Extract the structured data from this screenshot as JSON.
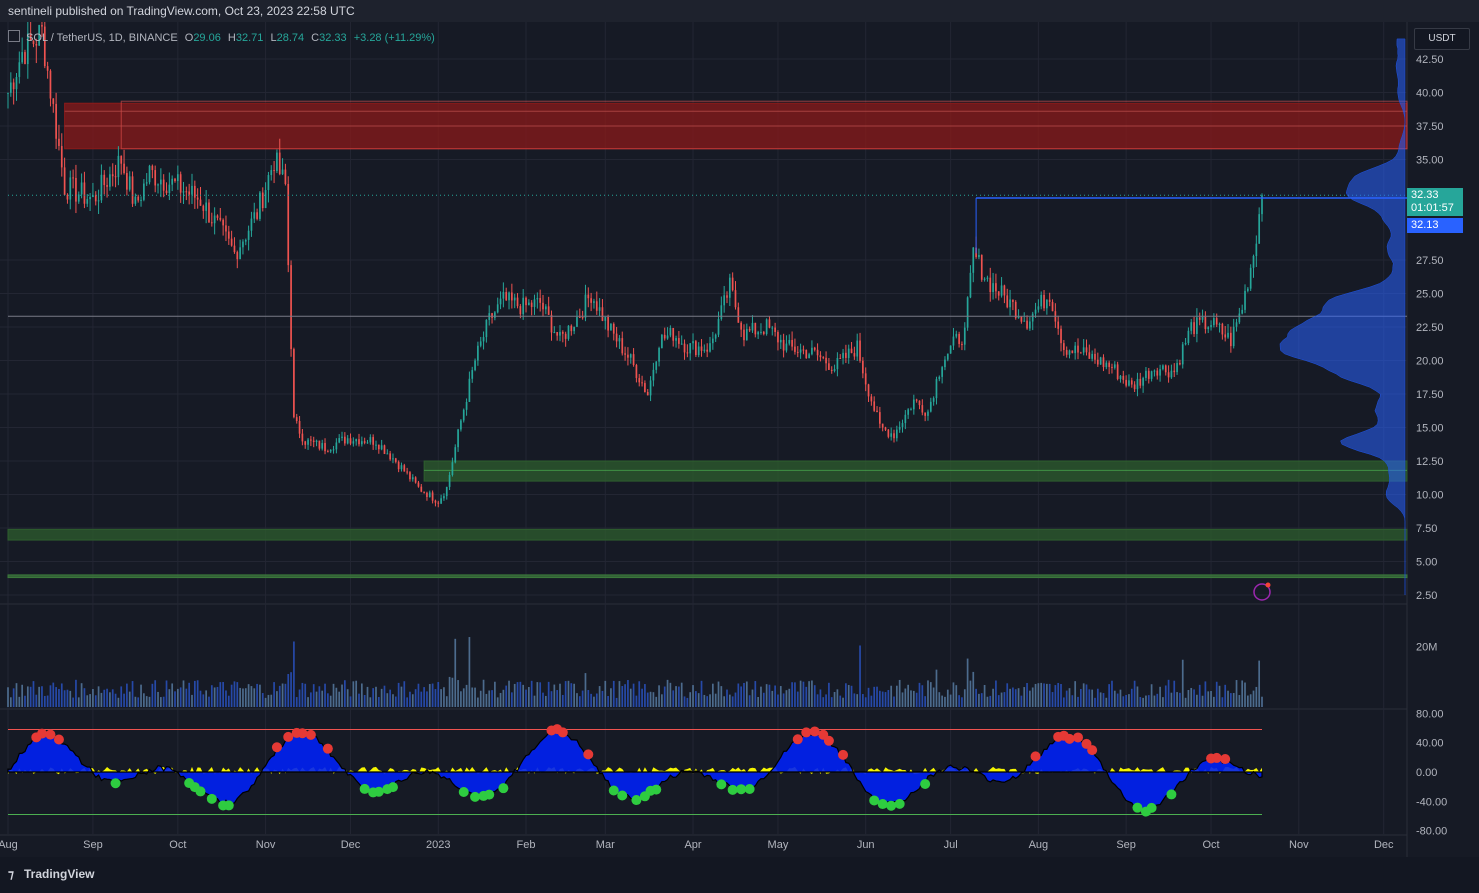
{
  "header": {
    "publish_line": "sentineli published on TradingView.com, Oct 23, 2023 22:58 UTC"
  },
  "legend": {
    "symbol": "SOL / TetherUS, 1D, BINANCE",
    "open_label": "O",
    "open": "29.06",
    "high_label": "H",
    "high": "32.71",
    "low_label": "L",
    "low": "28.74",
    "close_label": "C",
    "close": "32.33",
    "change": "+3.28 (+11.29%)"
  },
  "price_scale": {
    "currency": "USDT",
    "last_price": "32.33",
    "countdown": "01:01:57",
    "line_price": "32.13",
    "colors": {
      "last": "#26a69a",
      "line": "#2962ff"
    }
  },
  "footer": {
    "brand": "TradingView"
  },
  "chart_data": {
    "type": "candlestick",
    "symbol": "SOL / TetherUS",
    "interval": "1D",
    "exchange": "BINANCE",
    "x_labels": [
      "Aug",
      "Sep",
      "Oct",
      "Nov",
      "Dec",
      "2023",
      "Feb",
      "Mar",
      "Apr",
      "May",
      "Jun",
      "Jul",
      "Aug",
      "Sep",
      "Oct",
      "Nov",
      "Dec"
    ],
    "x_label_index": [
      0,
      30,
      60,
      91,
      121,
      152,
      183,
      211,
      242,
      272,
      303,
      333,
      364,
      395,
      425,
      456,
      486
    ],
    "price_ticks": [
      "42.50",
      "40.00",
      "37.50",
      "35.00",
      "27.50",
      "25.00",
      "22.50",
      "20.00",
      "17.50",
      "15.00",
      "12.50",
      "10.00",
      "7.50",
      "5.00",
      "2.50"
    ],
    "ylim": [
      1.5,
      44.5
    ],
    "anchors": [
      [
        0,
        40
      ],
      [
        5,
        43
      ],
      [
        12,
        44.5
      ],
      [
        20,
        33
      ],
      [
        30,
        32
      ],
      [
        40,
        35
      ],
      [
        45,
        31.5
      ],
      [
        50,
        34
      ],
      [
        60,
        33
      ],
      [
        68,
        32
      ],
      [
        80,
        28
      ],
      [
        88,
        31
      ],
      [
        94,
        35
      ],
      [
        98,
        33
      ],
      [
        101,
        15.5
      ],
      [
        105,
        14
      ],
      [
        112,
        13.5
      ],
      [
        120,
        14.2
      ],
      [
        130,
        14
      ],
      [
        137,
        12.5
      ],
      [
        145,
        10.5
      ],
      [
        152,
        9.5
      ],
      [
        155,
        10.5
      ],
      [
        160,
        15.5
      ],
      [
        165,
        20
      ],
      [
        170,
        23
      ],
      [
        175,
        24.5
      ],
      [
        182,
        24
      ],
      [
        188,
        24.3
      ],
      [
        195,
        21.5
      ],
      [
        202,
        23.5
      ],
      [
        206,
        25
      ],
      [
        212,
        22.5
      ],
      [
        220,
        20
      ],
      [
        226,
        17.5
      ],
      [
        230,
        21.5
      ],
      [
        235,
        22
      ],
      [
        240,
        21
      ],
      [
        248,
        21
      ],
      [
        255,
        25.5
      ],
      [
        260,
        22
      ],
      [
        268,
        22.5
      ],
      [
        275,
        21
      ],
      [
        285,
        20.5
      ],
      [
        292,
        19.5
      ],
      [
        300,
        21
      ],
      [
        303,
        18.5
      ],
      [
        308,
        15
      ],
      [
        313,
        14.5
      ],
      [
        320,
        17
      ],
      [
        325,
        16.2
      ],
      [
        330,
        20
      ],
      [
        335,
        21.5
      ],
      [
        338,
        22
      ],
      [
        341,
        28
      ],
      [
        346,
        26
      ],
      [
        353,
        24.5
      ],
      [
        360,
        23
      ],
      [
        368,
        25
      ],
      [
        373,
        21
      ],
      [
        380,
        20.5
      ],
      [
        390,
        19.5
      ],
      [
        397,
        18
      ],
      [
        405,
        19.5
      ],
      [
        412,
        19.2
      ],
      [
        418,
        22.5
      ],
      [
        425,
        22.8
      ],
      [
        432,
        21.5
      ],
      [
        436,
        24
      ],
      [
        440,
        28
      ],
      [
        443,
        32.33
      ]
    ],
    "candles_daily_total": 444,
    "last_close": 32.33,
    "zones": [
      {
        "name": "resistance-zone-upper",
        "low": 35.8,
        "high": 39.2,
        "color": "#8b1a1a"
      },
      {
        "name": "support-zone-mid",
        "low": 11.0,
        "high": 12.5,
        "color": "#2e5e2e"
      },
      {
        "name": "support-zone-low",
        "low": 6.6,
        "high": 7.4,
        "color": "#2e5e2e"
      },
      {
        "name": "support-line-bottom",
        "low": 3.8,
        "high": 4.0,
        "color": "#3c7a3c"
      }
    ],
    "lines": [
      {
        "name": "resistance-line",
        "price": 32.13,
        "from_index": 342,
        "color": "#2962ff"
      },
      {
        "name": "poc-line",
        "price": 23.3,
        "color": "#787b86"
      }
    ],
    "volume": {
      "tick_label": "20M",
      "tick_value": 20000000,
      "max": 33000000
    },
    "oscillator": {
      "ticks": [
        "80.00",
        "40.00",
        "0.00",
        "-40.00",
        "-80.00"
      ],
      "ylim": [
        -82,
        82
      ],
      "upper_line": 58,
      "lower_line": -58
    },
    "colors": {
      "up": "#26a69a",
      "down": "#ef5350",
      "background": "#161a25",
      "grid": "#232633",
      "profile": "#2962ff",
      "osc_blue": "#0021f5",
      "osc_yellow": "#f5f500"
    },
    "grid": true
  }
}
